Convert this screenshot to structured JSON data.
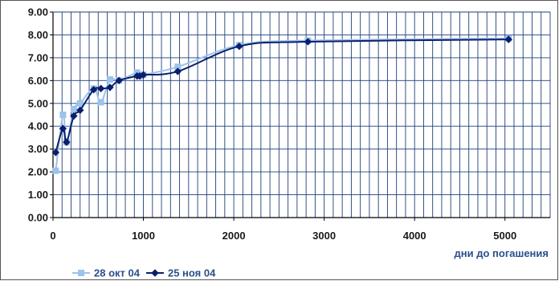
{
  "chart_data": {
    "type": "line",
    "xlabel": "дни до погашения",
    "ylabel": "",
    "xlim": [
      0,
      5500
    ],
    "ylim": [
      0,
      9
    ],
    "x_ticks": [
      0,
      1000,
      2000,
      3000,
      4000,
      5000
    ],
    "x_tick_labels": [
      "0",
      "1000",
      "2000",
      "3000",
      "4000",
      "5000"
    ],
    "y_ticks": [
      0,
      1,
      2,
      3,
      4,
      5,
      6,
      7,
      8,
      9
    ],
    "y_tick_labels": [
      "0.00",
      "1.00",
      "2.00",
      "3.00",
      "4.00",
      "5.00",
      "6.00",
      "7.00",
      "8.00",
      "9.00"
    ],
    "grid": true,
    "legend_position": "bottom-left",
    "series": [
      {
        "name": "28 окт 04",
        "color": "#9cc3ea",
        "marker": "square",
        "x": [
          30,
          110,
          150,
          230,
          300,
          450,
          530,
          630,
          730,
          930,
          960,
          1000,
          1380,
          2060,
          2820,
          5040
        ],
        "y": [
          2.05,
          4.5,
          3.3,
          4.75,
          5.0,
          5.65,
          5.05,
          6.05,
          6.0,
          6.35,
          6.2,
          6.25,
          6.6,
          7.55,
          7.75,
          7.85
        ]
      },
      {
        "name": "25 ноя 04",
        "color": "#0b1f6e",
        "marker": "diamond",
        "x": [
          30,
          110,
          150,
          230,
          300,
          450,
          530,
          630,
          730,
          930,
          960,
          1000,
          1380,
          2060,
          2820,
          5040
        ],
        "y": [
          2.85,
          3.9,
          3.3,
          4.45,
          4.7,
          5.6,
          5.65,
          5.7,
          6.0,
          6.2,
          6.2,
          6.25,
          6.4,
          7.5,
          7.7,
          7.8
        ]
      }
    ]
  }
}
